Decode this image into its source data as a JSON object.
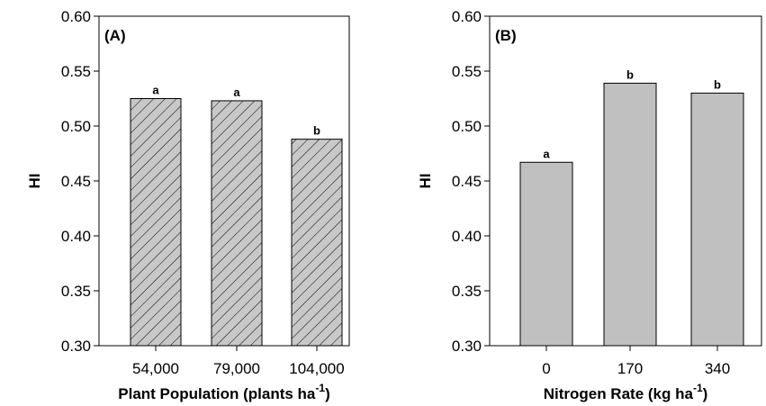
{
  "chart_data": [
    {
      "type": "bar",
      "panel_label": "(A)",
      "categories": [
        "54,000",
        "79,000",
        "104,000"
      ],
      "values": [
        0.525,
        0.523,
        0.488
      ],
      "significance": [
        "a",
        "a",
        "b"
      ],
      "xlabel_main": "Plant Population (plants ha",
      "xlabel_sup": "-1",
      "xlabel_end": ")",
      "ylabel": "HI",
      "ylim": [
        0.3,
        0.6
      ],
      "yticks": [
        "0.30",
        "0.35",
        "0.40",
        "0.45",
        "0.50",
        "0.55",
        "0.60"
      ],
      "bar_fill": "hatched-gray",
      "bar_color": "#c8c8c8"
    },
    {
      "type": "bar",
      "panel_label": "(B)",
      "categories": [
        "0",
        "170",
        "340"
      ],
      "values": [
        0.467,
        0.539,
        0.53
      ],
      "significance": [
        "a",
        "b",
        "b"
      ],
      "xlabel_main": "Nitrogen Rate (kg ha",
      "xlabel_sup": "-1",
      "xlabel_end": ")",
      "ylabel": "HI",
      "ylim": [
        0.3,
        0.6
      ],
      "yticks": [
        "0.30",
        "0.35",
        "0.40",
        "0.45",
        "0.50",
        "0.55",
        "0.60"
      ],
      "bar_fill": "solid-gray",
      "bar_color": "#c0c0c0"
    }
  ]
}
